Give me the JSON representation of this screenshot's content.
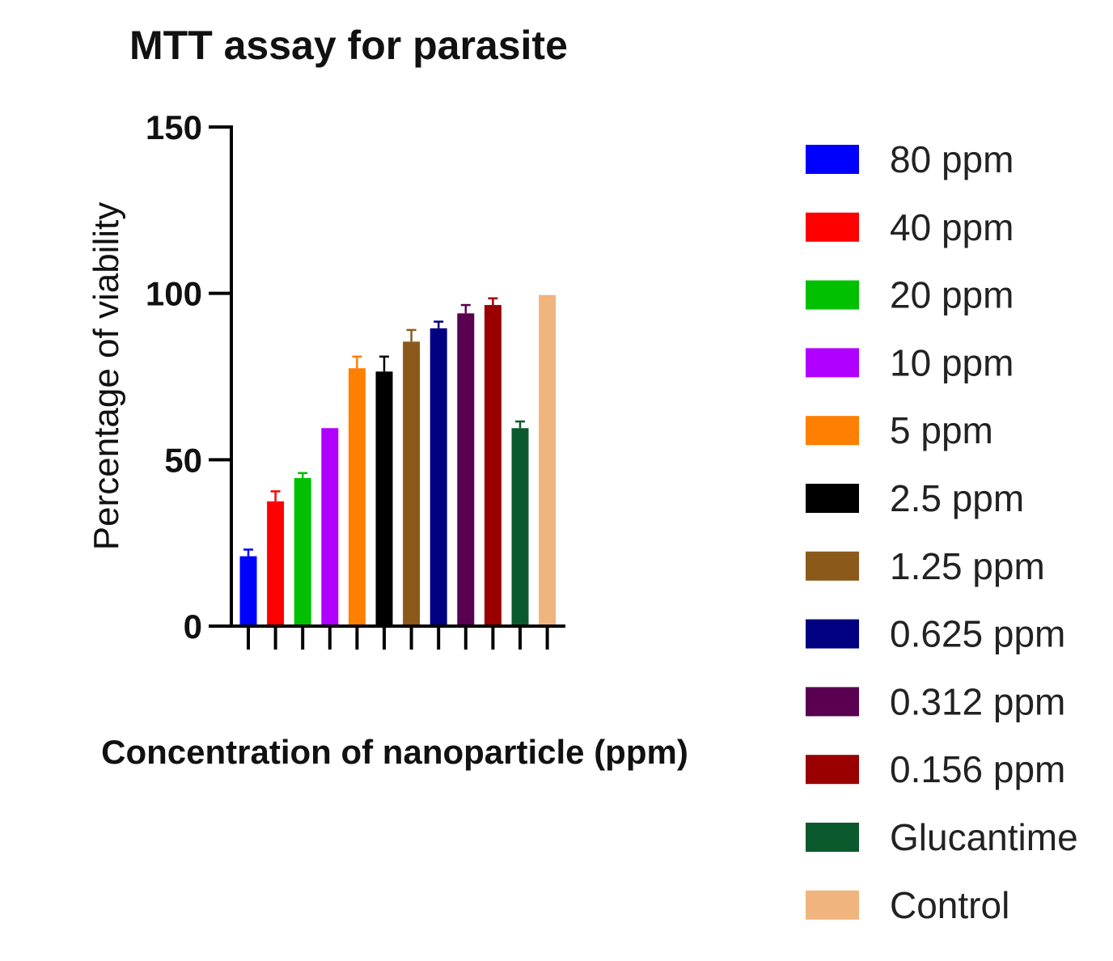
{
  "chart_data": {
    "type": "bar",
    "title": "MTT assay for parasite",
    "xlabel": "Concentration of nanoparticle (ppm)",
    "ylabel": "Percentage of viability",
    "ylim": [
      0,
      150
    ],
    "yticks": [
      "0",
      "50",
      "100",
      "150"
    ],
    "legend_position": "right",
    "grid": false,
    "categories": [
      "80 ppm",
      "40 ppm",
      "20 ppm",
      "10 ppm",
      "5 ppm",
      "2.5 ppm",
      "1.25 ppm",
      "0.625 ppm",
      "0.312 ppm",
      "0.156 ppm",
      "Glucantime",
      "Control"
    ],
    "values": [
      21,
      37.5,
      44.5,
      59.5,
      77.5,
      76.5,
      85.5,
      89.5,
      94,
      96.5,
      59.5,
      99.5
    ],
    "errors": [
      2,
      3,
      1.5,
      0,
      3.5,
      4.5,
      3.5,
      2,
      2.5,
      2,
      2,
      0
    ],
    "colors": [
      "#0000ff",
      "#ff0000",
      "#00c000",
      "#b000ff",
      "#ff7f00",
      "#000000",
      "#8b5a1b",
      "#000080",
      "#5a0050",
      "#9b0000",
      "#0b5a2e",
      "#f0b47e"
    ]
  }
}
